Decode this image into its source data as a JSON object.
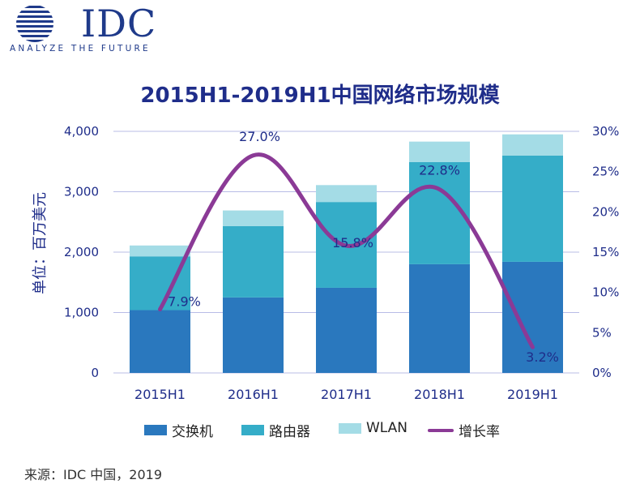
{
  "logo": {
    "word": "IDC",
    "tagline": "ANALYZE THE FUTURE",
    "icon": "globe-icon"
  },
  "source": "来源：IDC 中国，2019",
  "chart_data": {
    "type": "bar",
    "stacked": true,
    "title": "2015H1-2019H1中国网络市场规模",
    "ylabel": "单位：百万美元",
    "categories": [
      "2015H1",
      "2016H1",
      "2017H1",
      "2018H1",
      "2019H1"
    ],
    "ylim": [
      0,
      4000
    ],
    "yticks": [
      "0",
      "1,000",
      "2,000",
      "3,000",
      "4,000"
    ],
    "y2lim": [
      0,
      30
    ],
    "y2ticks": [
      "0%",
      "5%",
      "10%",
      "15%",
      "20%",
      "25%",
      "30%"
    ],
    "series": [
      {
        "name": "交换机",
        "values": [
          1040,
          1250,
          1410,
          1800,
          1840
        ],
        "color": "#2a78be"
      },
      {
        "name": "路由器",
        "values": [
          890,
          1180,
          1420,
          1690,
          1760
        ],
        "color": "#35adc8"
      },
      {
        "name": "WLAN",
        "values": [
          180,
          260,
          280,
          340,
          350
        ],
        "color": "#a4dce6"
      }
    ],
    "line": {
      "name": "增长率",
      "axis": "right",
      "values": [
        7.9,
        27.0,
        15.8,
        22.8,
        3.2
      ],
      "labels": [
        "7.9%",
        "27.0%",
        "15.8%",
        "22.8%",
        "3.2%"
      ],
      "color": "#8b3a96"
    },
    "grid": true,
    "legend_position": "bottom"
  }
}
